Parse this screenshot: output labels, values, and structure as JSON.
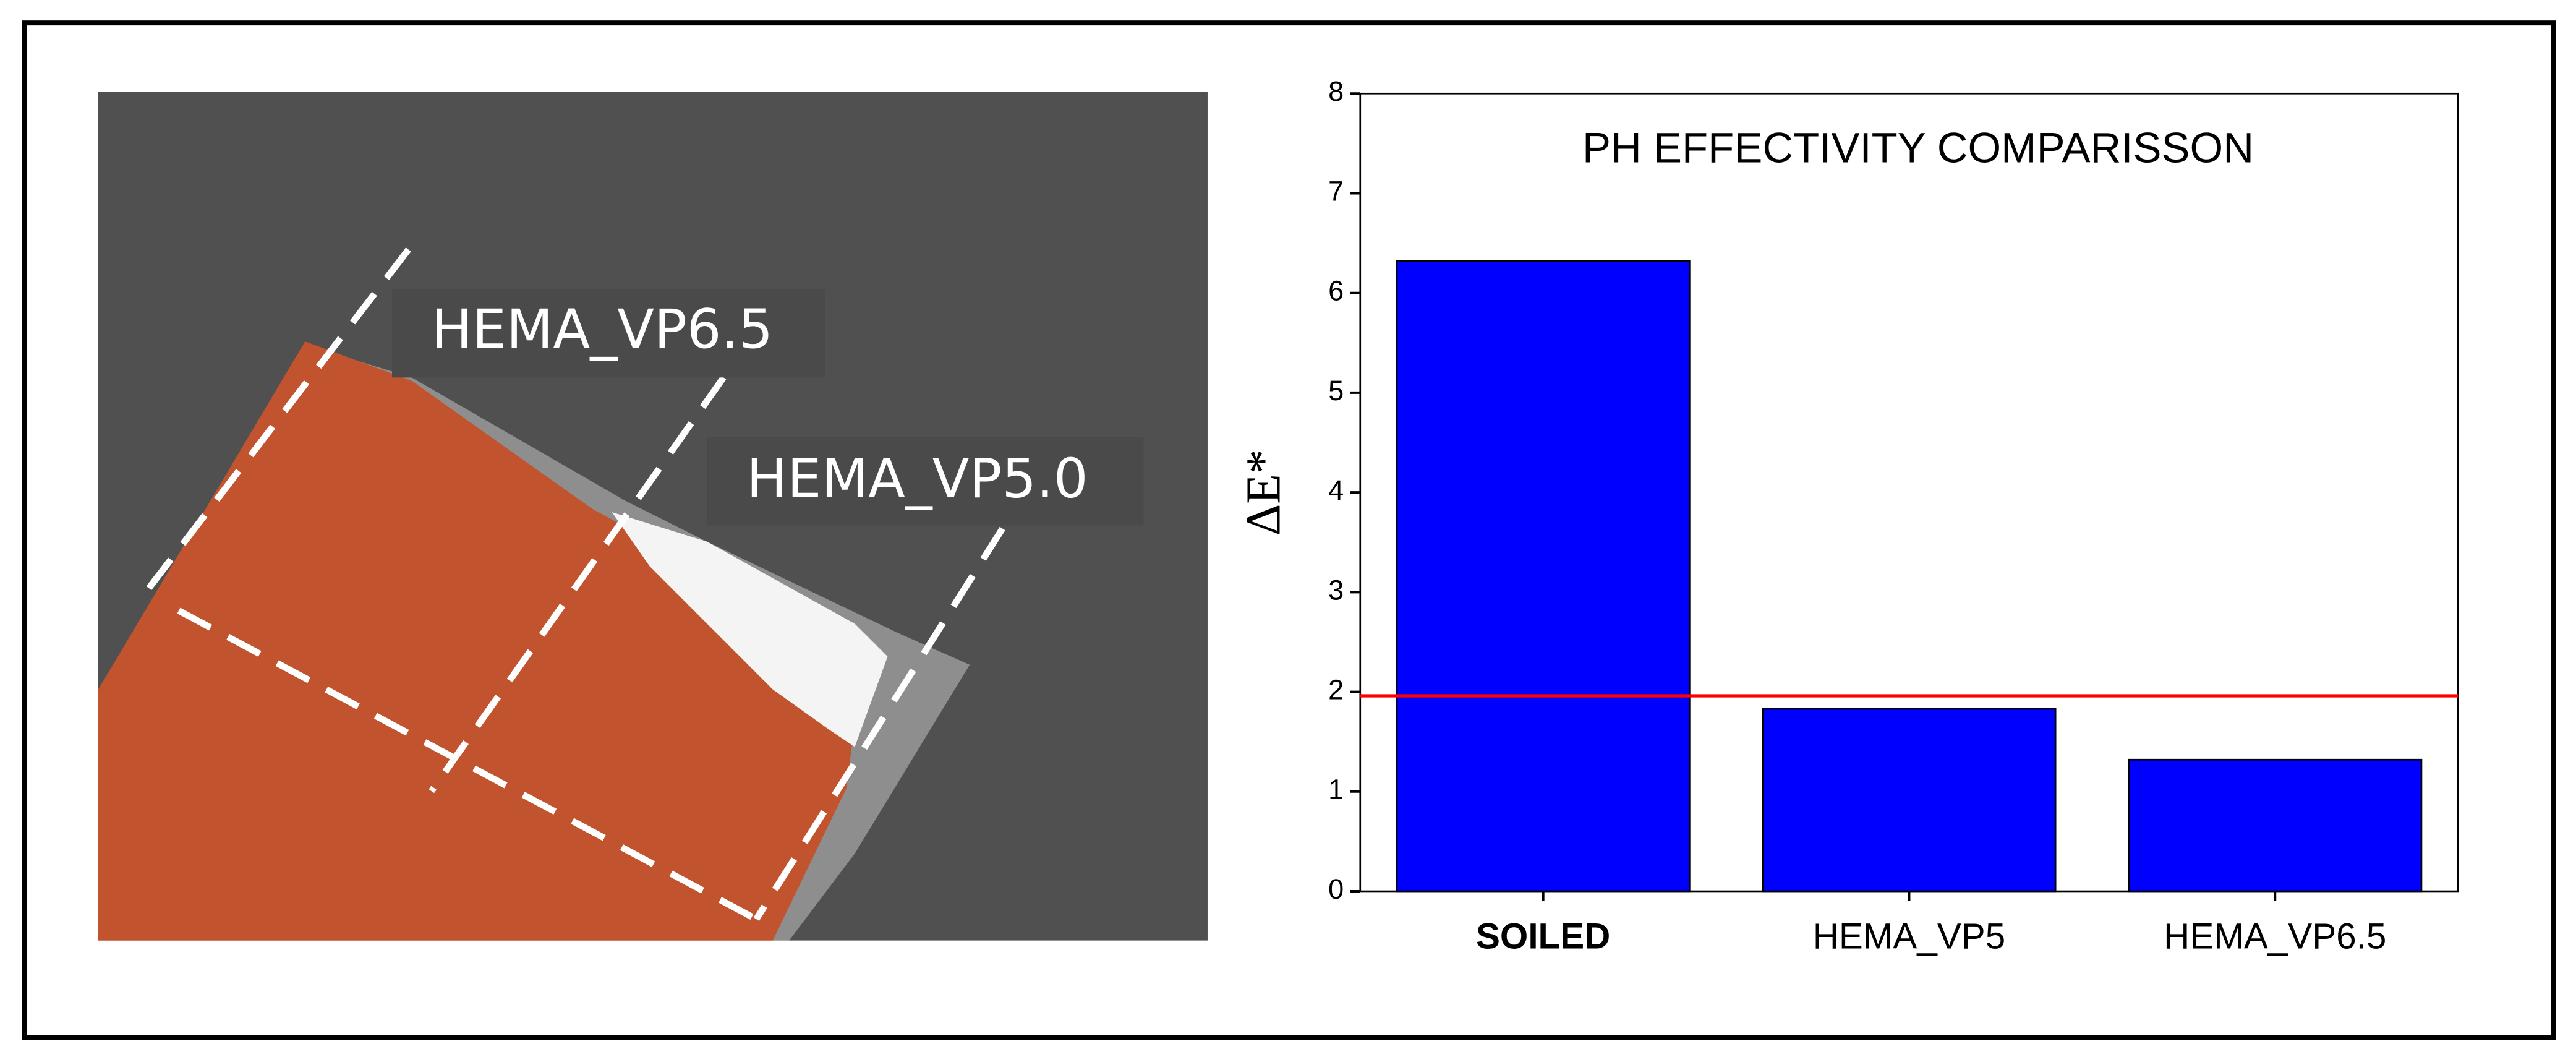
{
  "photo": {
    "labels": [
      "HEMA_VP6.5",
      "HEMA_VP5.0"
    ]
  },
  "chart_data": {
    "type": "bar",
    "title": "PH EFFECTIVITY COMPARISSON",
    "ylabel": "ΔE*",
    "categories": [
      "SOILED",
      "HEMA_VP5",
      "HEMA_VP6.5"
    ],
    "values": [
      6.32,
      1.83,
      1.32
    ],
    "color": "#0000ff",
    "ylim": [
      0,
      8
    ],
    "yticks": [
      0,
      1,
      2,
      3,
      4,
      5,
      6,
      7,
      8
    ],
    "grid": false,
    "reference_line": {
      "value": 1.96,
      "color": "#ff0000"
    }
  }
}
